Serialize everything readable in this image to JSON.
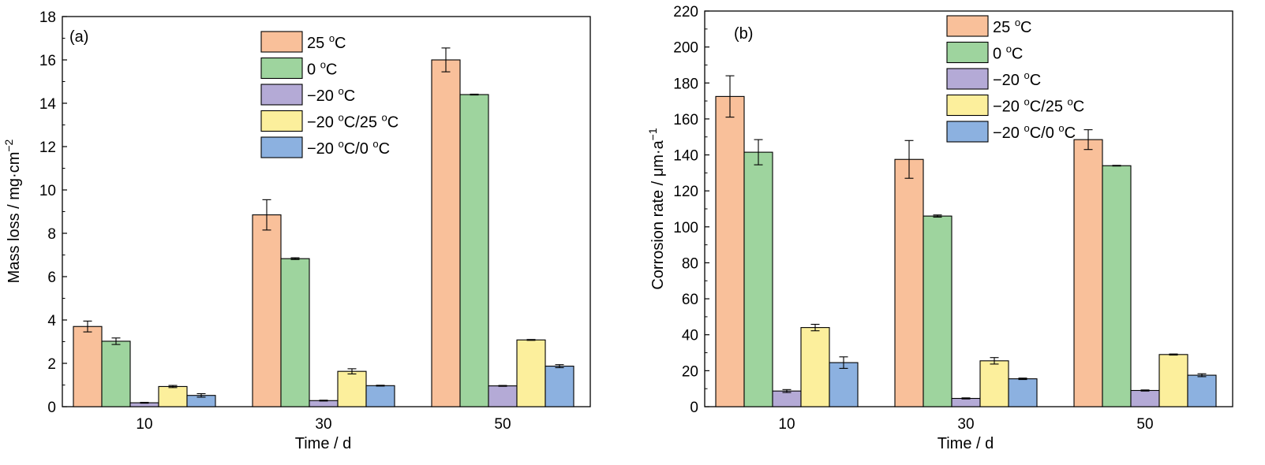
{
  "colors": {
    "25C": "#F9C09A",
    "0C": "#9ED49E",
    "m20C": "#B4AAD6",
    "m20C_25C": "#FCEF9C",
    "m20C_0C": "#8CB1E0"
  },
  "chart_data": [
    {
      "type": "bar",
      "panel_label": "(a)",
      "xlabel": "Time / d",
      "ylabel": "Mass loss / mg·cm",
      "ylabel_sup": "−2",
      "ylim": [
        0,
        18
      ],
      "yticks": [
        0,
        2,
        4,
        6,
        8,
        10,
        12,
        14,
        16,
        18
      ],
      "categories": [
        "10",
        "30",
        "50"
      ],
      "legend_position": "top-center",
      "series": [
        {
          "key": "25C",
          "name": "25 °C",
          "label_main": "25 ",
          "label_sup": "o",
          "label_tail": "C",
          "values": [
            3.7,
            8.85,
            16.0
          ],
          "errors": [
            0.25,
            0.7,
            0.55
          ]
        },
        {
          "key": "0C",
          "name": "0 °C",
          "label_main": "0 ",
          "label_sup": "o",
          "label_tail": "C",
          "values": [
            3.02,
            6.83,
            14.4
          ],
          "errors": [
            0.15,
            0.04,
            0.02
          ]
        },
        {
          "key": "m20C",
          "name": "−20 °C",
          "label_main": "−20 ",
          "label_sup": "o",
          "label_tail": "C",
          "values": [
            0.18,
            0.28,
            0.96
          ],
          "errors": [
            0.02,
            0.02,
            0.02
          ]
        },
        {
          "key": "m20C_25C",
          "name": "−20 °C/25 °C",
          "label_main": "−20 ",
          "label_sup": "o",
          "label_tail": "C/25 ",
          "label_sup2": "o",
          "label_tail2": "C",
          "values": [
            0.93,
            1.63,
            3.08
          ],
          "errors": [
            0.05,
            0.12,
            0.02
          ]
        },
        {
          "key": "m20C_0C",
          "name": "−20 °C/0 °C",
          "label_main": "−20 ",
          "label_sup": "o",
          "label_tail": "C/0 ",
          "label_sup2": "o",
          "label_tail2": "C",
          "values": [
            0.52,
            0.97,
            1.87
          ],
          "errors": [
            0.08,
            0.02,
            0.07
          ]
        }
      ]
    },
    {
      "type": "bar",
      "panel_label": "(b)",
      "xlabel": "Time / d",
      "ylabel": "Corrosion rate / μm·a",
      "ylabel_sup": "−1",
      "ylim": [
        0,
        220
      ],
      "yticks": [
        0,
        20,
        40,
        60,
        80,
        100,
        120,
        140,
        160,
        180,
        200,
        220
      ],
      "categories": [
        "10",
        "30",
        "50"
      ],
      "legend_position": "top-center",
      "series": [
        {
          "key": "25C",
          "name": "25 °C",
          "label_main": "25 ",
          "label_sup": "o",
          "label_tail": "C",
          "values": [
            172.5,
            137.5,
            148.5
          ],
          "errors": [
            11.5,
            10.5,
            5.5
          ]
        },
        {
          "key": "0C",
          "name": "0 °C",
          "label_main": "0 ",
          "label_sup": "o",
          "label_tail": "C",
          "values": [
            141.5,
            106.0,
            134.0
          ],
          "errors": [
            7.0,
            0.6,
            0.2
          ]
        },
        {
          "key": "m20C",
          "name": "−20 °C",
          "label_main": "−20 ",
          "label_sup": "o",
          "label_tail": "C",
          "values": [
            8.7,
            4.6,
            9.0
          ],
          "errors": [
            0.8,
            0.3,
            0.3
          ]
        },
        {
          "key": "m20C_25C",
          "name": "−20 °C/25 °C",
          "label_main": "−20 ",
          "label_sup": "o",
          "label_tail": "C/25 ",
          "label_sup2": "o",
          "label_tail2": "C",
          "values": [
            44.0,
            25.5,
            29.0
          ],
          "errors": [
            1.8,
            1.8,
            0.3
          ]
        },
        {
          "key": "m20C_0C",
          "name": "−20 °C/0 °C",
          "label_main": "−20 ",
          "label_sup": "o",
          "label_tail": "C/0 ",
          "label_sup2": "o",
          "label_tail2": "C",
          "values": [
            24.5,
            15.5,
            17.5
          ],
          "errors": [
            3.2,
            0.4,
            0.8
          ]
        }
      ]
    }
  ]
}
